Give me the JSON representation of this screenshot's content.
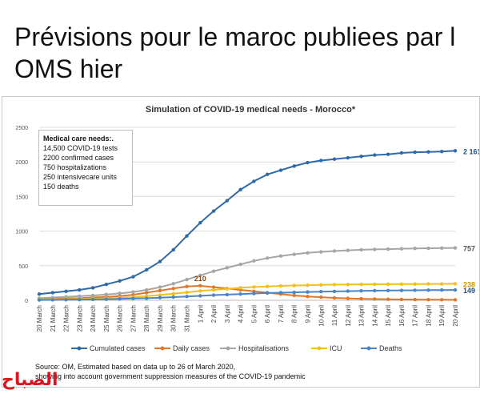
{
  "headline": "Prévisions pour le maroc publiees par l OMS hier",
  "logo_text": "الصباح",
  "colors": {
    "cumulated": "#2e6aa8",
    "daily": "#e0782b",
    "hosp": "#a6a6a6",
    "icu": "#f2c01c",
    "deaths": "#4a86c5",
    "grid": "#dcdcdc"
  },
  "chart_data": {
    "type": "line",
    "title": "Simulation of COVID-19 medical needs - Morocco*",
    "ylim": [
      0,
      2500
    ],
    "yticks": [
      "0",
      "500",
      "1000",
      "1500",
      "2000",
      "2500"
    ],
    "grid": true,
    "legend_position": "bottom",
    "categories": [
      "20 March",
      "21 March",
      "22 March",
      "23 March",
      "24 March",
      "25 March",
      "26 March",
      "27 March",
      "28 March",
      "29 March",
      "30 March",
      "31 March",
      "1 April",
      "2 April",
      "3 April",
      "4 April",
      "5 April",
      "6 April",
      "7 April",
      "8 April",
      "9 April",
      "10 April",
      "11 April",
      "12 April",
      "13 April",
      "14 April",
      "15 April",
      "16 April",
      "17 April",
      "18 April",
      "19 April",
      "20 April"
    ],
    "series": [
      {
        "name": "Cumulated cases",
        "color_key": "cumulated",
        "values": [
          90,
          110,
          130,
          150,
          180,
          230,
          280,
          340,
          440,
          560,
          730,
          930,
          1120,
          1290,
          1440,
          1600,
          1720,
          1820,
          1880,
          1940,
          1990,
          2020,
          2040,
          2060,
          2080,
          2100,
          2110,
          2130,
          2140,
          2145,
          2150,
          2161
        ]
      },
      {
        "name": "Daily cases",
        "color_key": "daily",
        "values": [
          20,
          20,
          25,
          30,
          40,
          50,
          60,
          80,
          110,
          140,
          170,
          200,
          210,
          190,
          170,
          150,
          130,
          110,
          90,
          70,
          55,
          45,
          35,
          28,
          22,
          18,
          15,
          12,
          10,
          9,
          8,
          7
        ]
      },
      {
        "name": "Hospitalisations",
        "color_key": "hosp",
        "values": [
          30,
          40,
          50,
          60,
          70,
          85,
          100,
          120,
          150,
          190,
          240,
          300,
          360,
          420,
          470,
          520,
          570,
          610,
          640,
          665,
          685,
          700,
          712,
          722,
          730,
          736,
          740,
          745,
          750,
          752,
          755,
          757
        ]
      },
      {
        "name": "ICU",
        "color_key": "icu",
        "values": [
          10,
          12,
          15,
          18,
          22,
          28,
          35,
          45,
          60,
          75,
          95,
          115,
          135,
          150,
          165,
          180,
          192,
          200,
          208,
          214,
          218,
          222,
          226,
          228,
          230,
          232,
          233,
          234,
          235,
          236,
          237,
          238
        ]
      },
      {
        "name": "Deaths",
        "color_key": "deaths",
        "values": [
          5,
          6,
          8,
          10,
          12,
          15,
          20,
          25,
          30,
          38,
          46,
          55,
          65,
          75,
          82,
          90,
          98,
          105,
          110,
          115,
          120,
          125,
          128,
          132,
          136,
          139,
          141,
          143,
          145,
          147,
          148,
          149
        ]
      }
    ],
    "annotations": [
      {
        "text": "210",
        "series": 1,
        "index": 12
      },
      {
        "text": "2 161",
        "series": 0,
        "index": 31
      },
      {
        "text": "757",
        "series": 2,
        "index": 31
      },
      {
        "text": "238",
        "series": 3,
        "index": 31
      },
      {
        "text": "149",
        "series": 4,
        "index": 31
      }
    ],
    "info_box": {
      "title": "Medical care needs:.",
      "lines": [
        "14,500 COVID-19 tests",
        "2200  confirmed cases",
        "750  hospitalizations",
        "250  intensivecare units",
        "150  deaths"
      ]
    },
    "source_lines": [
      "Source: OM, Estimated based on data up to 26 of March 2020,",
      "showing into account government suppression measures of the COVID-19 pandemic"
    ]
  }
}
